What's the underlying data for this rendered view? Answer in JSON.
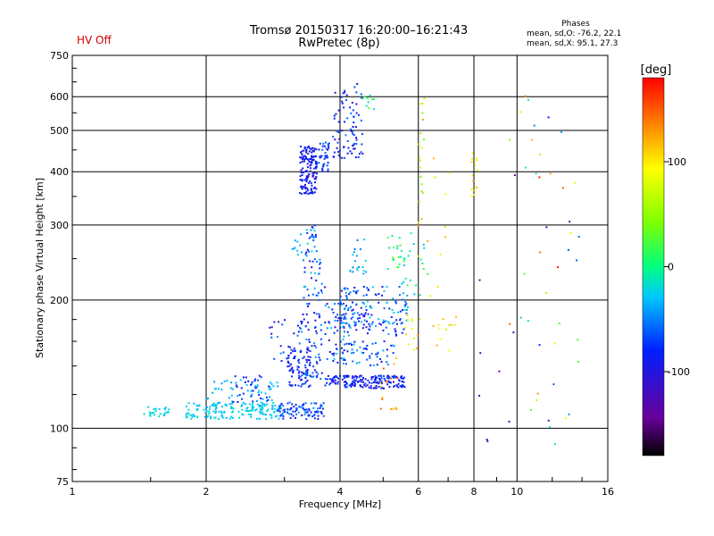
{
  "header": {
    "title_line1": "Tromsø 20150317 16:20:00–16:21:43",
    "title_line2": "RwPretec (8p)",
    "status": "HV Off",
    "status_color": "#cc0000"
  },
  "phase_stats": {
    "heading": "Phases",
    "line_o": "mean, sd,O: -76.2, 22.1",
    "line_x": "mean, sd,X:  95.1, 27.3"
  },
  "chart_data": {
    "type": "scatter",
    "xlabel": "Frequency [MHz]",
    "ylabel": "Stationary phase Virtual Height [km]",
    "x_scale": "log",
    "y_scale": "log",
    "xlim": [
      1,
      16
    ],
    "ylim": [
      75,
      750
    ],
    "x_ticks": [
      1,
      2,
      4,
      6,
      8,
      10,
      16
    ],
    "x_tick_labels": [
      "1",
      "2",
      "4",
      "6",
      "8",
      "10",
      "16"
    ],
    "y_ticks": [
      75,
      100,
      200,
      300,
      400,
      500,
      600,
      750
    ],
    "y_tick_labels": [
      "75",
      "100",
      "200",
      "300",
      "400",
      "500",
      "600",
      "750"
    ],
    "grid": true,
    "colorbar": {
      "label": "[deg]",
      "range": [
        -180,
        180
      ],
      "ticks": [
        100,
        0,
        -100
      ],
      "tick_labels": [
        "100",
        "0",
        "-100"
      ]
    },
    "clusters": [
      {
        "f": [
          1.45,
          1.65
        ],
        "h": [
          106,
          113
        ],
        "phase": [
          -30,
          -15
        ],
        "n": 25
      },
      {
        "f": [
          1.8,
          2.95
        ],
        "h": [
          105,
          115
        ],
        "phase": [
          -35,
          -15
        ],
        "n": 150
      },
      {
        "f": [
          2.0,
          2.9
        ],
        "h": [
          112,
          130
        ],
        "phase": [
          -50,
          -25
        ],
        "n": 60
      },
      {
        "f": [
          2.3,
          2.8
        ],
        "h": [
          115,
          135
        ],
        "phase": [
          -90,
          -60
        ],
        "n": 30
      },
      {
        "f": [
          2.9,
          3.7
        ],
        "h": [
          105,
          115
        ],
        "phase": [
          -100,
          -40
        ],
        "n": 90
      },
      {
        "f": [
          3.05,
          3.45
        ],
        "h": [
          125,
          155
        ],
        "phase": [
          -110,
          -60
        ],
        "n": 80
      },
      {
        "f": [
          2.75,
          3.3
        ],
        "h": [
          140,
          180
        ],
        "phase": [
          -120,
          -40
        ],
        "n": 20
      },
      {
        "f": [
          3.25,
          3.55
        ],
        "h": [
          355,
          460
        ],
        "phase": [
          -110,
          -70
        ],
        "n": 140
      },
      {
        "f": [
          3.5,
          3.8
        ],
        "h": [
          400,
          470
        ],
        "phase": [
          -100,
          -50
        ],
        "n": 40
      },
      {
        "f": [
          3.35,
          3.55
        ],
        "h": [
          250,
          300
        ],
        "phase": [
          -100,
          -20
        ],
        "n": 25
      },
      {
        "f": [
          3.1,
          3.3
        ],
        "h": [
          255,
          290
        ],
        "phase": [
          -40,
          -20
        ],
        "n": 10
      },
      {
        "f": [
          3.3,
          3.7
        ],
        "h": [
          180,
          250
        ],
        "phase": [
          -110,
          -30
        ],
        "n": 45
      },
      {
        "f": [
          3.2,
          3.65
        ],
        "h": [
          130,
          180
        ],
        "phase": [
          -110,
          -40
        ],
        "n": 60
      },
      {
        "f": [
          3.7,
          5.6
        ],
        "h": [
          124,
          133
        ],
        "phase": [
          -110,
          -60
        ],
        "n": 180
      },
      {
        "f": [
          3.7,
          4.2
        ],
        "h": [
          140,
          200
        ],
        "phase": [
          -110,
          -30
        ],
        "n": 60
      },
      {
        "f": [
          4.0,
          4.6
        ],
        "h": [
          170,
          215
        ],
        "phase": [
          -110,
          -30
        ],
        "n": 70
      },
      {
        "f": [
          4.5,
          5.7
        ],
        "h": [
          165,
          215
        ],
        "phase": [
          -110,
          -20
        ],
        "n": 90
      },
      {
        "f": [
          4.0,
          5.3
        ],
        "h": [
          140,
          160
        ],
        "phase": [
          -100,
          -30
        ],
        "n": 50
      },
      {
        "f": [
          4.2,
          4.6
        ],
        "h": [
          230,
          280
        ],
        "phase": [
          -60,
          -20
        ],
        "n": 20
      },
      {
        "f": [
          5.1,
          5.6
        ],
        "h": [
          230,
          290
        ],
        "phase": [
          -20,
          40
        ],
        "n": 20
      },
      {
        "f": [
          3.85,
          4.5
        ],
        "h": [
          430,
          550
        ],
        "phase": [
          -110,
          -50
        ],
        "n": 60
      },
      {
        "f": [
          3.9,
          4.5
        ],
        "h": [
          550,
          650
        ],
        "phase": [
          -110,
          -60
        ],
        "n": 20
      },
      {
        "f": [
          4.5,
          4.8
        ],
        "h": [
          560,
          610
        ],
        "phase": [
          -30,
          30
        ],
        "n": 10
      },
      {
        "f": [
          4.8,
          5.4
        ],
        "h": [
          110,
          150
        ],
        "phase": [
          110,
          150
        ],
        "n": 15
      },
      {
        "f": [
          5.5,
          6.3
        ],
        "h": [
          200,
          300
        ],
        "phase": [
          -40,
          20
        ],
        "n": 20
      },
      {
        "f": [
          5.6,
          7.3
        ],
        "h": [
          150,
          185
        ],
        "phase": [
          60,
          130
        ],
        "n": 25
      },
      {
        "f": [
          6.0,
          6.2
        ],
        "h": [
          300,
          600
        ],
        "phase": [
          30,
          130
        ],
        "n": 20
      },
      {
        "f": [
          6.0,
          7.3
        ],
        "h": [
          200,
          450
        ],
        "phase": [
          60,
          140
        ],
        "n": 12
      },
      {
        "f": [
          7.9,
          8.15
        ],
        "h": [
          350,
          450
        ],
        "phase": [
          70,
          120
        ],
        "n": 15
      },
      {
        "f": [
          8.0,
          9.3
        ],
        "h": [
          85,
          275
        ],
        "phase": [
          -150,
          -120
        ],
        "n": 6
      },
      {
        "f": [
          9.5,
          14
        ],
        "h": [
          90,
          620
        ],
        "phase": [
          -150,
          180
        ],
        "n": 45
      }
    ]
  }
}
